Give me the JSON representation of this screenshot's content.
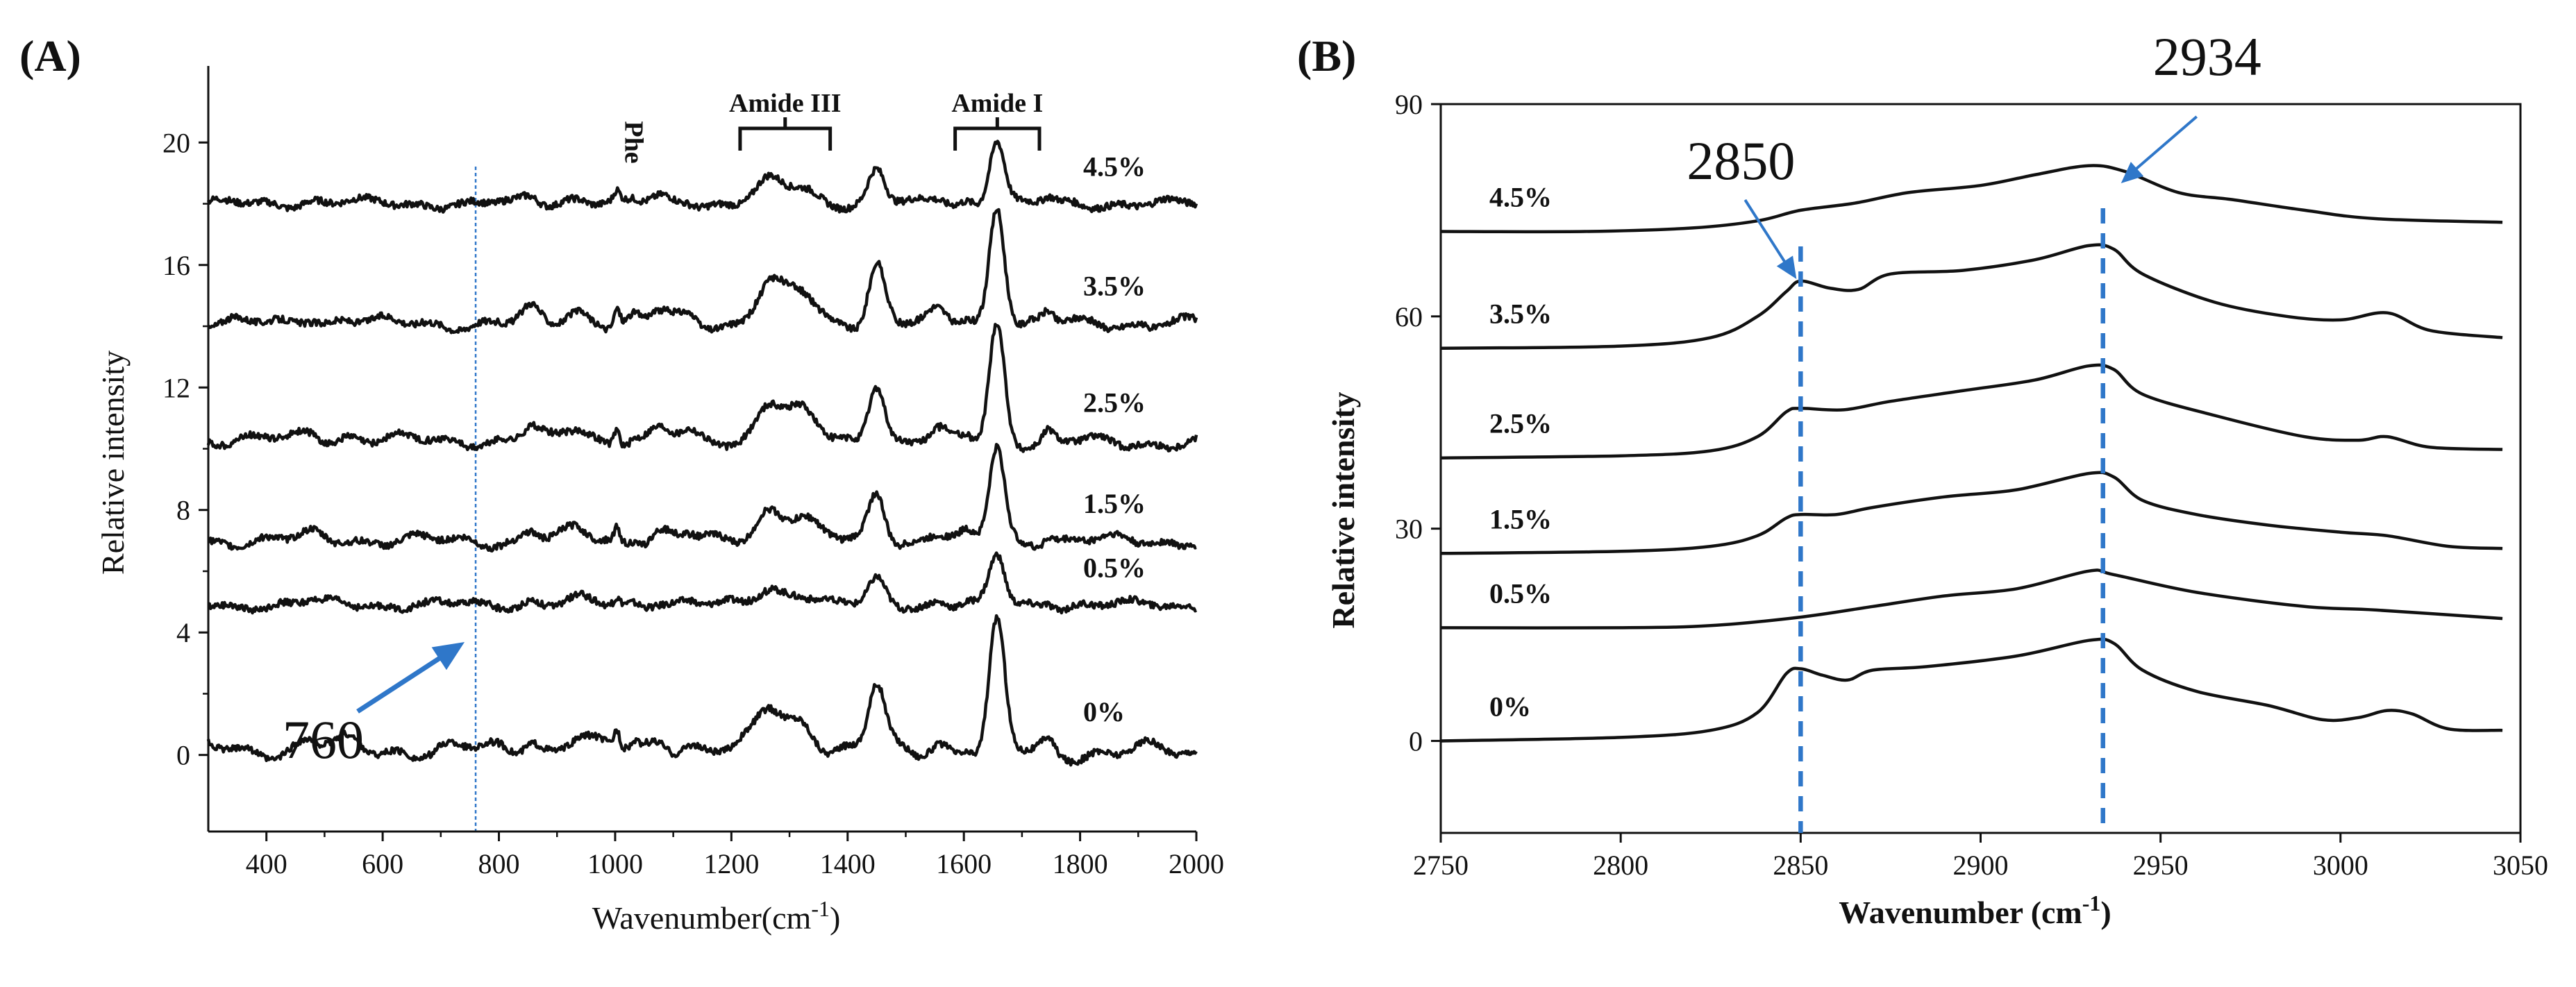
{
  "chart_data": [
    {
      "panel": "(A)",
      "type": "line",
      "xlabel": "Wavenumber(cm",
      "xlabel_sup": "-1",
      "xlabel_close": ")",
      "ylabel": "Relative intensity",
      "xlim": [
        300,
        2000
      ],
      "ylim": [
        -2.5,
        22.5
      ],
      "xticks": [
        400,
        600,
        800,
        1000,
        1200,
        1400,
        1600,
        1800,
        2000
      ],
      "xtick_labels": [
        "400",
        "600",
        "800",
        "1000",
        "1200",
        "1400",
        "1600",
        "1800",
        "2000"
      ],
      "yticks": [
        0,
        4,
        8,
        12,
        16,
        20
      ],
      "ytick_labels": [
        "0",
        "4",
        "8",
        "12",
        "16",
        "20"
      ],
      "series": [
        {
          "name": "0%",
          "baseline": 0.2,
          "end": 0.1,
          "scale": 1.0,
          "mod": 0.6
        },
        {
          "name": "0.5%",
          "baseline": 4.9,
          "end": 4.9,
          "scale": 0.38,
          "mod": 0.3
        },
        {
          "name": "1.5%",
          "baseline": 7.0,
          "end": 7.0,
          "scale": 0.75,
          "mod": 0.4
        },
        {
          "name": "2.5%",
          "baseline": 10.3,
          "end": 10.2,
          "scale": 0.95,
          "mod": 0.4
        },
        {
          "name": "3.5%",
          "baseline": 14.1,
          "end": 14.1,
          "scale": 0.95,
          "mod": 0.4
        },
        {
          "name": "4.5%",
          "baseline": 18.0,
          "end": 18.0,
          "scale": 0.52,
          "mod": 0.3
        }
      ],
      "peaks": [
        {
          "center": 475,
          "height": 0.25,
          "width": 18
        },
        {
          "center": 540,
          "height": 0.15,
          "width": 18
        },
        {
          "center": 855,
          "height": 0.45,
          "width": 14
        },
        {
          "center": 935,
          "height": 0.45,
          "width": 20
        },
        {
          "center": 1003,
          "height": 0.6,
          "width": 5
        },
        {
          "center": 1032,
          "height": 0.18,
          "width": 8
        },
        {
          "center": 1080,
          "height": 0.4,
          "width": 18
        },
        {
          "center": 1125,
          "height": 0.25,
          "width": 12
        },
        {
          "center": 1265,
          "height": 1.35,
          "width": 22
        },
        {
          "center": 1320,
          "height": 1.0,
          "width": 25
        },
        {
          "center": 1450,
          "height": 2.1,
          "width": 14
        },
        {
          "center": 1555,
          "height": 0.35,
          "width": 15
        },
        {
          "center": 1605,
          "height": 0.2,
          "width": 10
        },
        {
          "center": 1657,
          "height": 4.1,
          "width": 13
        },
        {
          "center": 1745,
          "height": 0.35,
          "width": 9
        }
      ],
      "reference_line": {
        "x": 760
      },
      "annotation": {
        "text": "760",
        "x": 760
      },
      "brackets": [
        {
          "label": "Amide III",
          "x_start": 1215,
          "x_end": 1370
        },
        {
          "label": "Amide I",
          "x_start": 1585,
          "x_end": 1730
        }
      ],
      "peak_marker": {
        "label": "Phe",
        "x": 1003
      }
    },
    {
      "panel": "(B)",
      "type": "line",
      "xlabel": "Wavenumber (cm",
      "xlabel_sup": "-1",
      "xlabel_close": ")",
      "ylabel": "Relative intensity",
      "xlim": [
        2750,
        3050
      ],
      "ylim": [
        -13,
        90
      ],
      "xticks": [
        2750,
        2800,
        2850,
        2900,
        2950,
        3000,
        3050
      ],
      "xtick_labels": [
        "2750",
        "2800",
        "2850",
        "2900",
        "2950",
        "3000",
        "3050"
      ],
      "yticks": [
        0,
        30,
        60,
        90
      ],
      "ytick_labels": [
        "0",
        "30",
        "60",
        "90"
      ],
      "series": [
        {
          "name": "0%",
          "points": [
            [
              2750,
              0
            ],
            [
              2800,
              0.5
            ],
            [
              2825,
              1.5
            ],
            [
              2838,
              4
            ],
            [
              2846,
              9.5
            ],
            [
              2850,
              10.2
            ],
            [
              2856,
              9.3
            ],
            [
              2863,
              8.6
            ],
            [
              2870,
              10
            ],
            [
              2885,
              10.5
            ],
            [
              2910,
              12
            ],
            [
              2930,
              14.2
            ],
            [
              2937,
              13.8
            ],
            [
              2945,
              10
            ],
            [
              2960,
              7
            ],
            [
              2980,
              5
            ],
            [
              2995,
              3
            ],
            [
              3005,
              3.3
            ],
            [
              3013,
              4.3
            ],
            [
              3020,
              3.8
            ],
            [
              3030,
              1.7
            ],
            [
              3045,
              1.5
            ]
          ]
        },
        {
          "name": "0.5%",
          "points": [
            [
              2750,
              16
            ],
            [
              2800,
              16
            ],
            [
              2825,
              16.3
            ],
            [
              2850,
              17.5
            ],
            [
              2870,
              19
            ],
            [
              2890,
              20.5
            ],
            [
              2910,
              21.5
            ],
            [
              2930,
              24
            ],
            [
              2937,
              23.5
            ],
            [
              2960,
              21
            ],
            [
              2990,
              19
            ],
            [
              3010,
              18.5
            ],
            [
              3045,
              17.3
            ]
          ]
        },
        {
          "name": "1.5%",
          "points": [
            [
              2750,
              26.5
            ],
            [
              2800,
              26.8
            ],
            [
              2825,
              27.5
            ],
            [
              2838,
              29
            ],
            [
              2846,
              31.5
            ],
            [
              2850,
              32
            ],
            [
              2860,
              32
            ],
            [
              2870,
              33
            ],
            [
              2890,
              34.5
            ],
            [
              2910,
              35.5
            ],
            [
              2930,
              37.8
            ],
            [
              2937,
              37.3
            ],
            [
              2945,
              34
            ],
            [
              2960,
              32
            ],
            [
              2980,
              30.5
            ],
            [
              3000,
              29.5
            ],
            [
              3013,
              29
            ],
            [
              3030,
              27.5
            ],
            [
              3045,
              27.2
            ]
          ]
        },
        {
          "name": "2.5%",
          "points": [
            [
              2750,
              40
            ],
            [
              2800,
              40.3
            ],
            [
              2825,
              41
            ],
            [
              2838,
              43
            ],
            [
              2846,
              46.5
            ],
            [
              2850,
              47
            ],
            [
              2862,
              46.8
            ],
            [
              2875,
              48
            ],
            [
              2895,
              49.5
            ],
            [
              2915,
              51
            ],
            [
              2930,
              53
            ],
            [
              2937,
              52.5
            ],
            [
              2945,
              49
            ],
            [
              2965,
              46
            ],
            [
              2990,
              43
            ],
            [
              3005,
              42.5
            ],
            [
              3013,
              43
            ],
            [
              3025,
              41.5
            ],
            [
              3045,
              41.2
            ]
          ]
        },
        {
          "name": "3.5%",
          "points": [
            [
              2750,
              55.5
            ],
            [
              2800,
              55.8
            ],
            [
              2825,
              57
            ],
            [
              2838,
              60
            ],
            [
              2846,
              63.5
            ],
            [
              2850,
              65
            ],
            [
              2858,
              64
            ],
            [
              2866,
              63.8
            ],
            [
              2875,
              66
            ],
            [
              2895,
              66.5
            ],
            [
              2915,
              68
            ],
            [
              2930,
              70
            ],
            [
              2937,
              69.5
            ],
            [
              2945,
              66
            ],
            [
              2965,
              62
            ],
            [
              2985,
              60
            ],
            [
              3000,
              59.5
            ],
            [
              3013,
              60.5
            ],
            [
              3025,
              58
            ],
            [
              3045,
              57
            ]
          ]
        },
        {
          "name": "4.5%",
          "points": [
            [
              2750,
              72
            ],
            [
              2790,
              72
            ],
            [
              2820,
              72.5
            ],
            [
              2838,
              73.5
            ],
            [
              2850,
              75
            ],
            [
              2865,
              76
            ],
            [
              2880,
              77.5
            ],
            [
              2900,
              78.5
            ],
            [
              2915,
              80
            ],
            [
              2930,
              81.3
            ],
            [
              2940,
              80.5
            ],
            [
              2955,
              77.5
            ],
            [
              2970,
              76.5
            ],
            [
              2990,
              75
            ],
            [
              3010,
              73.8
            ],
            [
              3045,
              73.3
            ]
          ]
        }
      ],
      "reference_lines": [
        {
          "x": 2850
        },
        {
          "x": 2934
        }
      ],
      "annotations": [
        {
          "text": "2850",
          "x": 2850
        },
        {
          "text": "2934",
          "x": 2934
        }
      ]
    }
  ],
  "colors": {
    "annotation_blue": "#2f77c9",
    "trace": "#111111",
    "axis": "#111111"
  }
}
